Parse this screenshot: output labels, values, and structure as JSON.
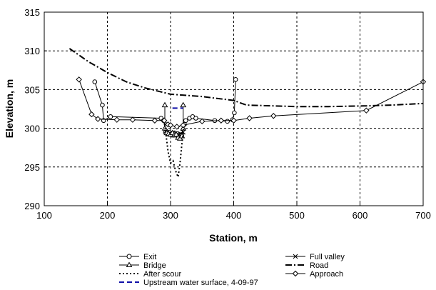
{
  "chart_data": {
    "type": "line",
    "title": "",
    "xlabel": "Station, m",
    "ylabel": "Elevation, m",
    "xlim": [
      100,
      700
    ],
    "ylim": [
      290,
      315
    ],
    "xticks": [
      "100",
      "200",
      "300",
      "400",
      "500",
      "600",
      "700"
    ],
    "yticks": [
      "290",
      "295",
      "300",
      "305",
      "310",
      "315"
    ],
    "grid": true,
    "legend_position": "bottom",
    "legend": {
      "exit": "Exit",
      "bridge": "Bridge",
      "after_scour": "After scour",
      "upstream": "Upstream water surface, 4-09-97",
      "full_valley": "Full valley",
      "road": "Road",
      "approach": "Approach"
    },
    "series": [
      {
        "key": "exit",
        "name": "Exit",
        "style": "solid",
        "marker": "circle",
        "color": "#000000",
        "x": [
          180,
          192,
          194,
          205,
          285,
          289,
          292,
          295,
          298,
          302,
          306,
          310,
          314,
          318,
          322,
          324,
          330,
          335,
          340,
          370,
          390,
          398,
          401,
          403
        ],
        "y": [
          306,
          303,
          301,
          301.5,
          301.3,
          301.0,
          299.5,
          299.3,
          299.5,
          299.2,
          299.4,
          299.3,
          299.0,
          299.2,
          300.5,
          301,
          301.3,
          301.5,
          301.3,
          301,
          300.9,
          301.1,
          302,
          306.3
        ]
      },
      {
        "key": "full_valley",
        "name": "Full valley",
        "style": "solid",
        "marker": "x",
        "color": "#000000",
        "x": [
          292,
          296,
          300,
          304,
          308,
          312,
          316,
          320
        ],
        "y": [
          299.6,
          299.2,
          299.3,
          299.4,
          299.1,
          299.2,
          299.3,
          299.5
        ]
      },
      {
        "key": "bridge",
        "name": "Bridge",
        "style": "solid",
        "marker": "triangle",
        "color": "#000000",
        "x": [
          291,
          291,
          294,
          297,
          300,
          303,
          306,
          309,
          312,
          315,
          318,
          320,
          320
        ],
        "y": [
          303,
          300,
          299.4,
          299.3,
          299.2,
          299.4,
          299.1,
          299.2,
          298.8,
          298.7,
          299,
          300,
          303
        ]
      },
      {
        "key": "road",
        "name": "Road",
        "style": "dashdot",
        "marker": "none",
        "color": "#000000",
        "x": [
          140,
          170,
          200,
          230,
          260,
          300,
          350,
          400,
          420,
          500,
          550,
          610,
          650,
          700
        ],
        "y": [
          310.3,
          308.6,
          307.2,
          306,
          305.2,
          304.4,
          304.1,
          303.6,
          303,
          302.8,
          302.8,
          302.9,
          303,
          303.2
        ]
      },
      {
        "key": "after_scour",
        "name": "After scour",
        "style": "dotted",
        "marker": "none",
        "color": "#000000",
        "x": [
          290,
          296,
          300,
          304,
          308,
          312,
          315,
          318,
          321
        ],
        "y": [
          301,
          297,
          295.5,
          295.8,
          294.5,
          293.7,
          295.5,
          298,
          300
        ]
      },
      {
        "key": "approach",
        "name": "Approach",
        "style": "solid",
        "marker": "diamond",
        "color": "#000000",
        "x": [
          155,
          175,
          185,
          215,
          240,
          275,
          290,
          296,
          300,
          310,
          320,
          350,
          380,
          400,
          425,
          463,
          610,
          700
        ],
        "y": [
          306.3,
          301.8,
          301.2,
          301.1,
          301.1,
          301,
          301,
          300.5,
          300.4,
          300.2,
          300.4,
          300.9,
          301,
          301,
          301.3,
          301.6,
          302.3,
          306
        ]
      },
      {
        "key": "upstream",
        "name": "Upstream water surface, 4-09-97",
        "style": "dashed",
        "marker": "none",
        "color": "#1010a8",
        "x": [
          303,
          320
        ],
        "y": [
          302.6,
          302.6
        ]
      }
    ]
  }
}
